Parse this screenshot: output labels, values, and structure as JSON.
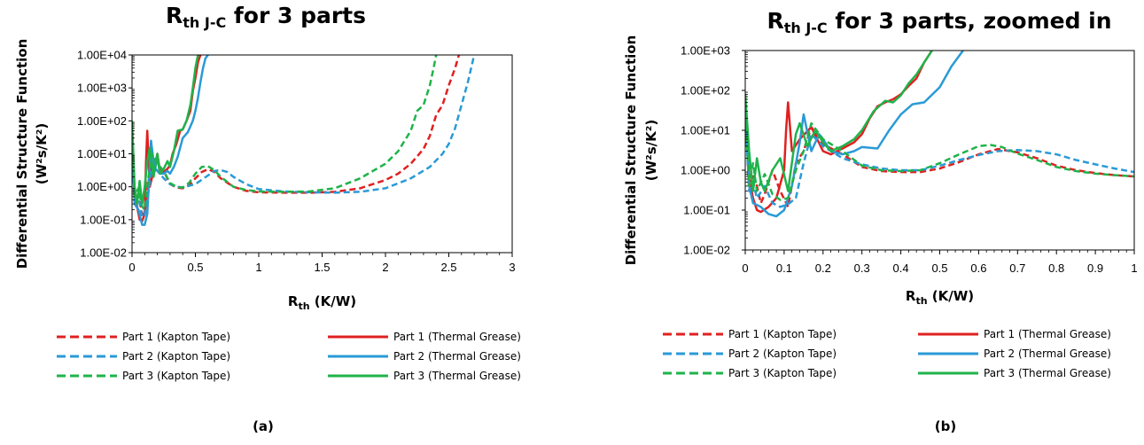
{
  "chart_data": [
    {
      "panel_label": "(a)",
      "type": "line",
      "title": {
        "main": "R",
        "sub": "th J-C",
        "rest": " for 3 parts"
      },
      "xlabel": {
        "main": "R",
        "sub": "th",
        "rest": " (K/W)"
      },
      "ylabel": {
        "line1": "Differential Structure Function",
        "line2": "(W²s/K²)"
      },
      "xlim": [
        0,
        3
      ],
      "ylim": [
        0.01,
        10000
      ],
      "y_scale": "log",
      "x_ticks": [
        0,
        0.5,
        1,
        1.5,
        2,
        2.5,
        3
      ],
      "x_tick_labels": [
        "0",
        "0.5",
        "1",
        "1.5",
        "2",
        "2.5",
        "3"
      ],
      "y_ticks": [
        0.01,
        0.1,
        1,
        10,
        100,
        1000,
        10000
      ],
      "y_tick_labels": [
        "1.00E-02",
        "1.00E-01",
        "1.00E+00",
        "1.00E+01",
        "1.00E+02",
        "1.00E+03",
        "1.00E+04"
      ],
      "grid": false,
      "legend_position": "bottom",
      "series": [
        {
          "name": "Part 1 (Kapton Tape)",
          "color": "#e02020",
          "dash": true,
          "x": [
            0,
            0.02,
            0.05,
            0.08,
            0.1,
            0.13,
            0.16,
            0.2,
            0.25,
            0.3,
            0.35,
            0.4,
            0.45,
            0.5,
            0.55,
            0.6,
            0.65,
            0.7,
            0.8,
            0.9,
            1.0,
            1.2,
            1.4,
            1.6,
            1.8,
            2.0,
            2.1,
            2.2,
            2.3,
            2.35,
            2.4,
            2.45,
            2.5,
            2.55,
            2.58
          ],
          "y": [
            50,
            0.4,
            0.7,
            0.15,
            0.15,
            1.5,
            6,
            4,
            3,
            1.2,
            0.95,
            0.9,
            1.1,
            1.8,
            2.8,
            3.4,
            2.8,
            1.8,
            1.0,
            0.75,
            0.68,
            0.66,
            0.66,
            0.7,
            0.9,
            1.6,
            2.5,
            5,
            14,
            35,
            150,
            300,
            1200,
            4000,
            10000
          ]
        },
        {
          "name": "Part 1 (Thermal Grease)",
          "color": "#e02020",
          "dash": false,
          "x": [
            0,
            0.02,
            0.04,
            0.06,
            0.08,
            0.1,
            0.11,
            0.12,
            0.14,
            0.17,
            0.2,
            0.22,
            0.25,
            0.28,
            0.3,
            0.32,
            0.35,
            0.38,
            0.4,
            0.43,
            0.46,
            0.48,
            0.5,
            0.52,
            0.54
          ],
          "y": [
            40,
            0.5,
            0.25,
            0.1,
            0.09,
            0.15,
            5,
            50,
            1,
            3,
            10,
            3,
            2.8,
            3.5,
            4.5,
            10,
            20,
            50,
            55,
            100,
            200,
            800,
            2000,
            6000,
            10000
          ]
        },
        {
          "name": "Part 2 (Kapton Tape)",
          "color": "#2a9ad6",
          "dash": true,
          "x": [
            0,
            0.02,
            0.05,
            0.08,
            0.1,
            0.13,
            0.16,
            0.2,
            0.25,
            0.3,
            0.35,
            0.4,
            0.5,
            0.6,
            0.65,
            0.7,
            0.75,
            0.8,
            0.9,
            1.0,
            1.2,
            1.4,
            1.6,
            1.8,
            2.0,
            2.2,
            2.35,
            2.45,
            2.5,
            2.55,
            2.6,
            2.65,
            2.7
          ],
          "y": [
            30,
            0.3,
            0.5,
            0.12,
            0.14,
            0.7,
            5,
            3,
            1.8,
            1.2,
            1.0,
            0.95,
            1.2,
            2.2,
            3,
            3.2,
            2.8,
            2.0,
            1.2,
            0.85,
            0.72,
            0.68,
            0.66,
            0.7,
            0.9,
            1.8,
            4.0,
            10,
            20,
            60,
            300,
            1500,
            10000
          ]
        },
        {
          "name": "Part 2 (Thermal Grease)",
          "color": "#2a9ad6",
          "dash": false,
          "x": [
            0,
            0.02,
            0.05,
            0.08,
            0.1,
            0.12,
            0.15,
            0.18,
            0.2,
            0.22,
            0.25,
            0.28,
            0.3,
            0.33,
            0.36,
            0.4,
            0.44,
            0.48,
            0.5,
            0.52,
            0.54,
            0.56,
            0.58,
            0.6
          ],
          "y": [
            30,
            0.3,
            0.2,
            0.07,
            0.07,
            0.15,
            25,
            3,
            8,
            2.5,
            2.5,
            3,
            2.5,
            4,
            8,
            30,
            45,
            100,
            200,
            500,
            1500,
            4000,
            8000,
            10000
          ]
        },
        {
          "name": "Part 3 (Kapton Tape)",
          "color": "#1fb34a",
          "dash": true,
          "x": [
            0,
            0.02,
            0.05,
            0.08,
            0.1,
            0.13,
            0.16,
            0.2,
            0.25,
            0.3,
            0.35,
            0.4,
            0.45,
            0.5,
            0.55,
            0.6,
            0.65,
            0.7,
            0.8,
            0.9,
            1.0,
            1.2,
            1.4,
            1.6,
            1.8,
            2.0,
            2.1,
            2.2,
            2.25,
            2.3,
            2.35,
            2.38,
            2.4
          ],
          "y": [
            40,
            0.5,
            0.9,
            0.25,
            0.2,
            2.0,
            10,
            5,
            3,
            1.3,
            1.0,
            0.95,
            1.3,
            2.5,
            4.0,
            4.2,
            3.2,
            2.0,
            1.0,
            0.8,
            0.72,
            0.7,
            0.72,
            0.9,
            1.8,
            5,
            12,
            50,
            200,
            300,
            1200,
            4000,
            10000
          ]
        },
        {
          "name": "Part 3 (Thermal Grease)",
          "color": "#1fb34a",
          "dash": false,
          "x": [
            0,
            0.02,
            0.04,
            0.06,
            0.08,
            0.1,
            0.12,
            0.14,
            0.17,
            0.2,
            0.22,
            0.25,
            0.28,
            0.3,
            0.33,
            0.36,
            0.4,
            0.43,
            0.46,
            0.48,
            0.5,
            0.52
          ],
          "y": [
            100,
            1.0,
            0.3,
            1.5,
            0.3,
            1.0,
            6,
            15,
            2,
            10,
            2.5,
            3.5,
            6,
            4,
            12,
            50,
            55,
            100,
            300,
            1000,
            4000,
            10000
          ]
        }
      ]
    },
    {
      "panel_label": "(b)",
      "type": "line",
      "title": {
        "main": "R",
        "sub": "th J-C",
        "rest": " for 3 parts, zoomed in"
      },
      "xlabel": {
        "main": "R",
        "sub": "th",
        "rest": " (K/W)"
      },
      "ylabel": {
        "line1": "Differential Structure Function",
        "line2": "(W²s/K²)"
      },
      "xlim": [
        0,
        1
      ],
      "ylim": [
        0.01,
        1000
      ],
      "y_scale": "log",
      "x_ticks": [
        0,
        0.1,
        0.2,
        0.3,
        0.4,
        0.5,
        0.6,
        0.7,
        0.8,
        0.9,
        1
      ],
      "x_tick_labels": [
        "0",
        "0.1",
        "0.2",
        "0.3",
        "0.4",
        "0.5",
        "0.6",
        "0.7",
        "0.8",
        "0.9",
        "1"
      ],
      "y_ticks": [
        0.01,
        0.1,
        1,
        10,
        100,
        1000
      ],
      "y_tick_labels": [
        "1.00E-02",
        "1.00E-01",
        "1.00E+00",
        "1.00E+01",
        "1.00E+02",
        "1.00E+03"
      ],
      "grid": false,
      "legend_position": "bottom",
      "series": [
        {
          "name": "Part 1 (Kapton Tape)",
          "color": "#e02020",
          "dash": true,
          "x": [
            0,
            0.01,
            0.02,
            0.03,
            0.04,
            0.05,
            0.07,
            0.09,
            0.11,
            0.13,
            0.15,
            0.17,
            0.2,
            0.25,
            0.3,
            0.35,
            0.4,
            0.45,
            0.5,
            0.55,
            0.6,
            0.65,
            0.7,
            0.75,
            0.8,
            0.85,
            0.9,
            0.95,
            1.0
          ],
          "y": [
            50,
            0.3,
            0.8,
            0.4,
            0.15,
            0.25,
            1.0,
            0.3,
            0.12,
            1.5,
            3,
            12,
            4.5,
            2.5,
            1.2,
            0.95,
            0.9,
            0.9,
            1.1,
            1.6,
            2.5,
            3.4,
            2.8,
            2.0,
            1.3,
            1.0,
            0.85,
            0.75,
            0.7
          ]
        },
        {
          "name": "Part 1 (Thermal Grease)",
          "color": "#e02020",
          "dash": false,
          "x": [
            0,
            0.01,
            0.02,
            0.03,
            0.04,
            0.06,
            0.08,
            0.1,
            0.105,
            0.11,
            0.12,
            0.14,
            0.17,
            0.2,
            0.22,
            0.25,
            0.28,
            0.3,
            0.32,
            0.34,
            0.36,
            0.38,
            0.4,
            0.42,
            0.44,
            0.46,
            0.48
          ],
          "y": [
            40,
            0.6,
            0.2,
            0.1,
            0.09,
            0.12,
            0.2,
            1.0,
            10,
            50,
            3,
            6,
            12,
            3,
            2.5,
            3.5,
            5,
            8,
            20,
            40,
            50,
            60,
            80,
            130,
            200,
            500,
            1000
          ]
        },
        {
          "name": "Part 2 (Kapton Tape)",
          "color": "#2a9ad6",
          "dash": true,
          "x": [
            0,
            0.01,
            0.02,
            0.03,
            0.05,
            0.07,
            0.09,
            0.11,
            0.13,
            0.15,
            0.17,
            0.2,
            0.25,
            0.3,
            0.35,
            0.4,
            0.45,
            0.5,
            0.55,
            0.6,
            0.65,
            0.7,
            0.75,
            0.8,
            0.85,
            0.9,
            0.95,
            1.0
          ],
          "y": [
            30,
            0.3,
            0.5,
            0.2,
            0.4,
            0.15,
            0.12,
            0.14,
            0.2,
            1.5,
            8,
            4,
            2,
            1.4,
            1.1,
            1.0,
            1.0,
            1.3,
            1.8,
            2.4,
            3.0,
            3.2,
            3.0,
            2.5,
            1.8,
            1.4,
            1.1,
            0.9
          ]
        },
        {
          "name": "Part 2 (Thermal Grease)",
          "color": "#2a9ad6",
          "dash": false,
          "x": [
            0,
            0.01,
            0.02,
            0.04,
            0.06,
            0.08,
            0.1,
            0.12,
            0.14,
            0.15,
            0.17,
            0.19,
            0.2,
            0.22,
            0.25,
            0.28,
            0.3,
            0.34,
            0.37,
            0.4,
            0.43,
            0.46,
            0.5,
            0.53,
            0.56
          ],
          "y": [
            30,
            0.4,
            0.15,
            0.12,
            0.08,
            0.07,
            0.1,
            0.4,
            5,
            25,
            3,
            8,
            6,
            3,
            2.5,
            3,
            3.8,
            3.5,
            10,
            25,
            45,
            50,
            120,
            400,
            1000
          ]
        },
        {
          "name": "Part 3 (Kapton Tape)",
          "color": "#1fb34a",
          "dash": true,
          "x": [
            0,
            0.01,
            0.02,
            0.03,
            0.05,
            0.07,
            0.09,
            0.11,
            0.13,
            0.15,
            0.17,
            0.2,
            0.25,
            0.3,
            0.35,
            0.4,
            0.45,
            0.5,
            0.55,
            0.6,
            0.63,
            0.66,
            0.7,
            0.75,
            0.8,
            0.85,
            0.9,
            0.95,
            1.0
          ],
          "y": [
            40,
            0.4,
            1.5,
            0.3,
            0.8,
            0.25,
            0.18,
            0.2,
            1.0,
            3,
            15,
            6,
            3,
            1.3,
            1.0,
            0.95,
            1.0,
            1.5,
            2.5,
            4.0,
            4.3,
            3.8,
            2.6,
            1.8,
            1.2,
            0.95,
            0.82,
            0.75,
            0.7
          ]
        },
        {
          "name": "Part 3 (Thermal Grease)",
          "color": "#1fb34a",
          "dash": false,
          "x": [
            0,
            0.01,
            0.02,
            0.03,
            0.04,
            0.05,
            0.07,
            0.09,
            0.11,
            0.13,
            0.14,
            0.16,
            0.18,
            0.2,
            0.22,
            0.25,
            0.28,
            0.3,
            0.33,
            0.36,
            0.38,
            0.4,
            0.42,
            0.44,
            0.46,
            0.48
          ],
          "y": [
            80,
            3,
            0.3,
            2.0,
            0.5,
            0.3,
            1.0,
            2.0,
            0.3,
            8,
            15,
            4,
            10,
            5,
            3,
            4,
            6,
            10,
            30,
            55,
            50,
            75,
            150,
            250,
            500,
            1000
          ]
        }
      ]
    }
  ]
}
